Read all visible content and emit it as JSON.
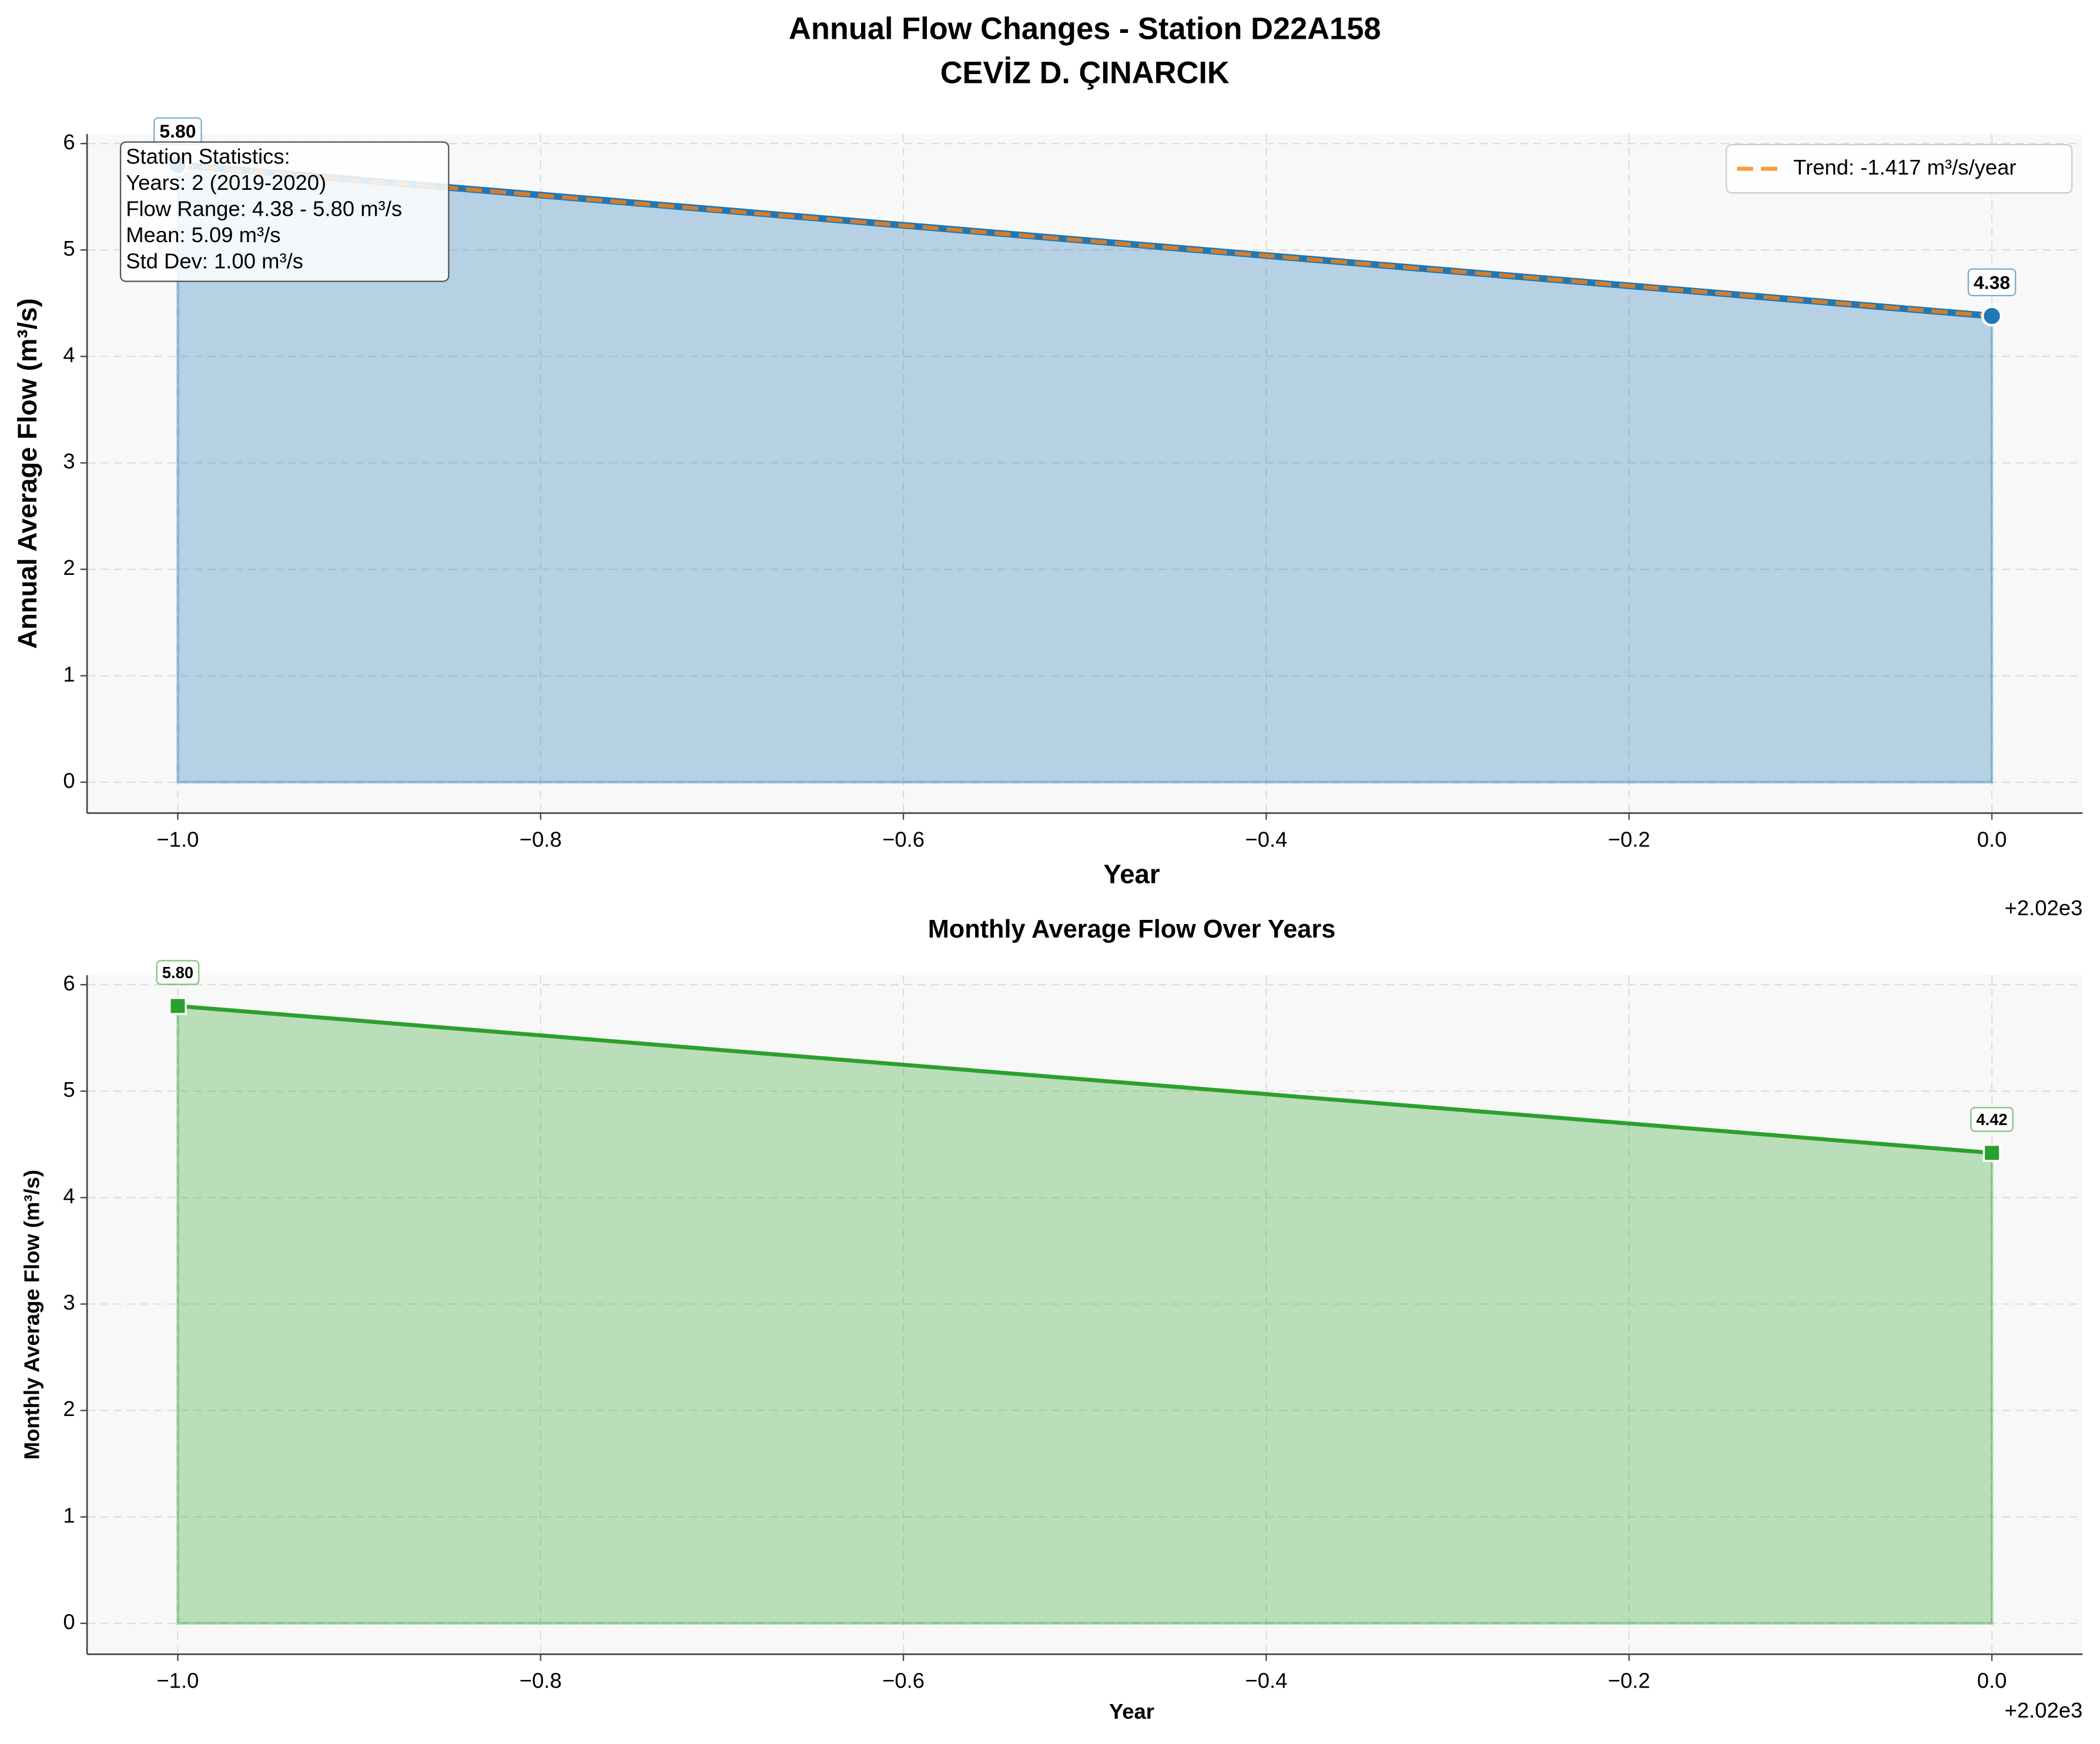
{
  "title": "Annual Flow Changes - Station D22A158",
  "subtitle": "CEVİZ D. ÇINARCIK",
  "chart_data": [
    {
      "type": "line",
      "area": true,
      "marker": "circle",
      "ylabel": "Annual Average Flow (m³/s)",
      "xlabel": "Year",
      "x_offset_label": "+2.02e3",
      "x": [
        -1,
        0
      ],
      "series": [
        {
          "color": "#1f77b4",
          "values": [
            5.8,
            4.38
          ],
          "value_labels": [
            "5.80",
            "4.38"
          ]
        },
        {
          "name": "Trend: -1.417 m³/s/year",
          "color": "#ff7f0e",
          "dashed": true,
          "values": [
            5.797,
            4.38
          ]
        }
      ],
      "stats": [
        "Station Statistics:",
        "Years: 2 (2019-2020)",
        "Flow Range: 4.38 - 5.80 m³/s",
        "Mean: 5.09 m³/s",
        "Std Dev: 1.00 m³/s"
      ],
      "legend": "upper right",
      "grid": true,
      "xlim": [
        -1.05,
        0.05
      ],
      "xticks": [
        {
          "value": -1.0,
          "label": "−1.0"
        },
        {
          "value": -0.8,
          "label": "−0.8"
        },
        {
          "value": -0.6,
          "label": "−0.6"
        },
        {
          "value": -0.4,
          "label": "−0.4"
        },
        {
          "value": -0.2,
          "label": "−0.2"
        },
        {
          "value": 0,
          "label": "0.0"
        }
      ],
      "ylim": [
        -0.29,
        6.09
      ],
      "yticks": [
        0,
        1,
        2,
        3,
        4,
        5,
        6
      ]
    },
    {
      "type": "line",
      "area": true,
      "marker": "square",
      "title": "Monthly Average Flow Over Years",
      "ylabel": "Monthly Average Flow (m³/s)",
      "xlabel": "Year",
      "x_offset_label": "+2.02e3",
      "x": [
        -1,
        0
      ],
      "series": [
        {
          "color": "#2ca02c",
          "values": [
            5.8,
            4.42
          ],
          "value_labels": [
            "5.80",
            "4.42"
          ]
        }
      ],
      "grid": true,
      "xlim": [
        -1.05,
        0.05
      ],
      "xticks": [
        {
          "value": -1.0,
          "label": "−1.0"
        },
        {
          "value": -0.8,
          "label": "−0.8"
        },
        {
          "value": -0.6,
          "label": "−0.6"
        },
        {
          "value": -0.4,
          "label": "−0.4"
        },
        {
          "value": -0.2,
          "label": "−0.2"
        },
        {
          "value": 0,
          "label": "0.0"
        }
      ],
      "ylim": [
        -0.29,
        6.09
      ],
      "yticks": [
        0,
        1,
        2,
        3,
        4,
        5,
        6
      ]
    }
  ]
}
